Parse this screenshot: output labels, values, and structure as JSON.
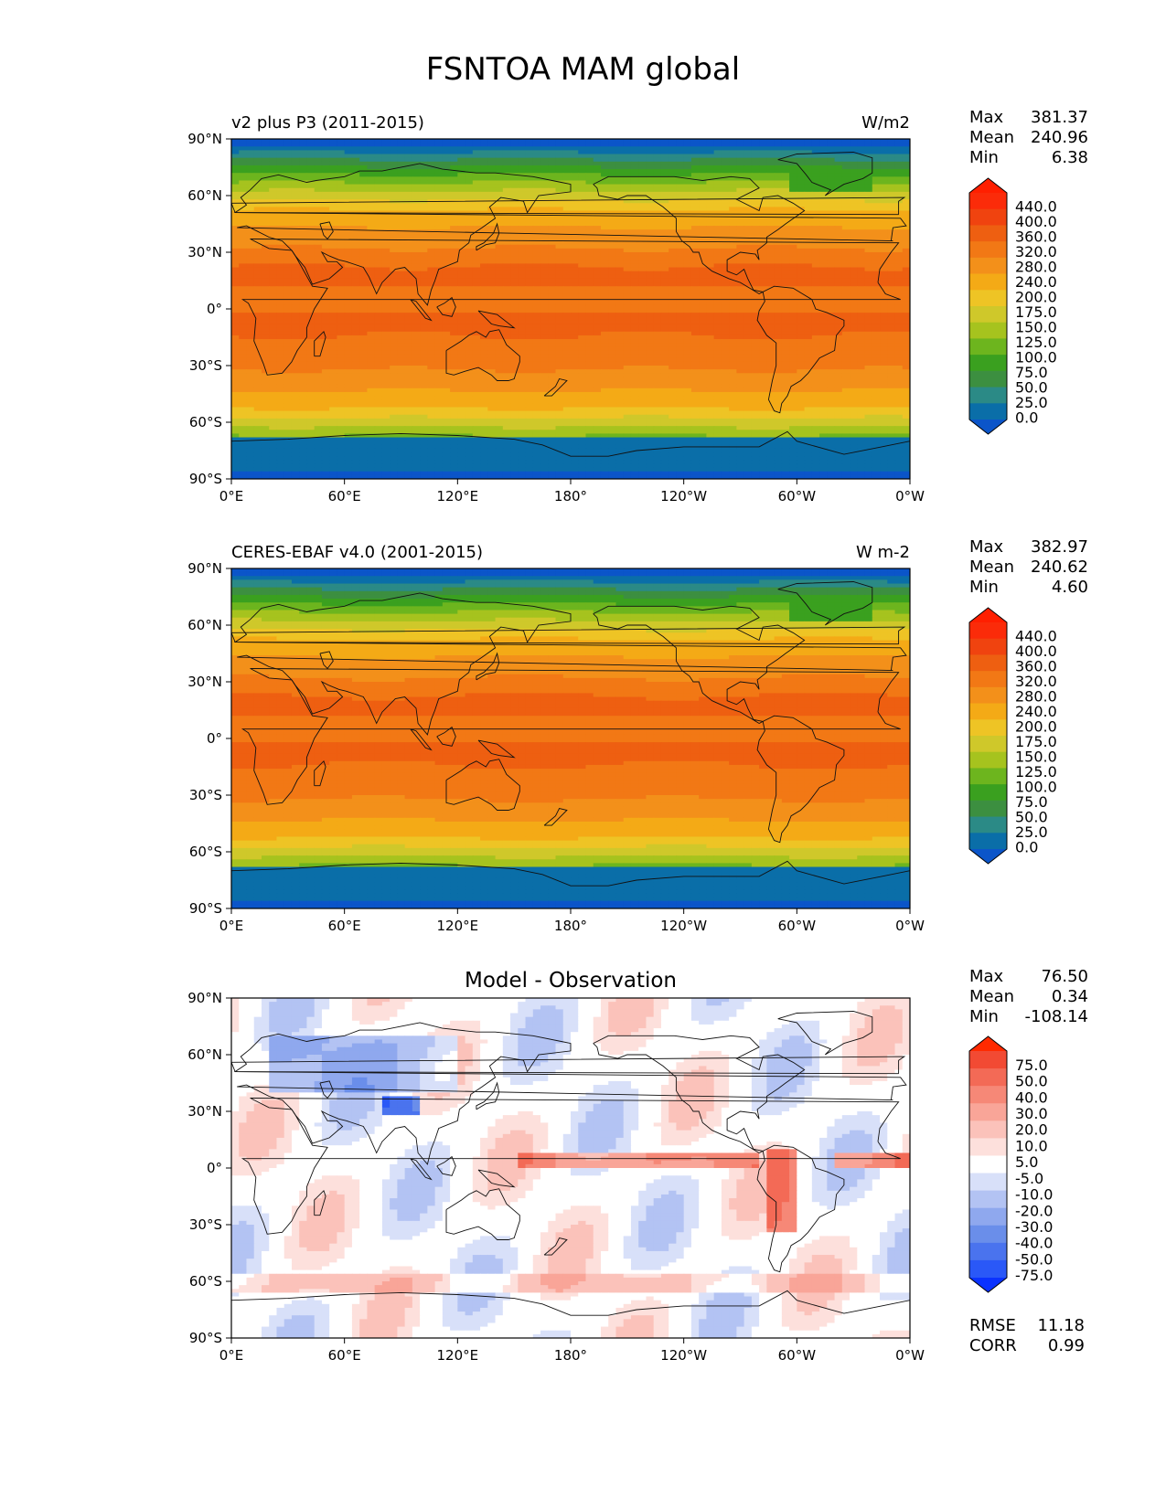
{
  "title": "FSNTOA MAM global",
  "chart_data": [
    {
      "type": "heatmap",
      "panel": "test",
      "left_title": "v2 plus P3 (2011-2015)",
      "center_title": "",
      "units": "W/m2",
      "yticks": [
        "90°N",
        "60°N",
        "30°N",
        "0°",
        "30°S",
        "60°S",
        "90°S"
      ],
      "xticks": [
        "0°E",
        "60°E",
        "120°E",
        "180°",
        "120°W",
        "60°W",
        "0°W"
      ],
      "xlim": [
        0,
        360
      ],
      "ylim": [
        -90,
        90
      ],
      "stats": {
        "max_label": "Max",
        "max": "381.37",
        "mean_label": "Mean",
        "mean": "240.96",
        "min_label": "Min",
        "min": "6.38"
      },
      "colorbar_levels": [
        "0.0",
        "25.0",
        "50.0",
        "75.0",
        "100.0",
        "125.0",
        "150.0",
        "175.0",
        "200.0",
        "240.0",
        "280.0",
        "320.0",
        "360.0",
        "400.0",
        "440.0"
      ],
      "colorbar_colors": [
        "#0b55c9",
        "#0a6ea8",
        "#2b8a86",
        "#3c8f40",
        "#3aa01f",
        "#6db51e",
        "#a6c31e",
        "#cfc82a",
        "#eec425",
        "#f4aa16",
        "#f3901a",
        "#f27815",
        "#ee5f11",
        "#f0430f",
        "#fb2b09",
        "#ff1f00"
      ]
    },
    {
      "type": "heatmap",
      "panel": "reference",
      "left_title": "CERES-EBAF v4.0 (2001-2015)",
      "center_title": "",
      "units": "W m-2",
      "yticks": [
        "90°N",
        "60°N",
        "30°N",
        "0°",
        "30°S",
        "60°S",
        "90°S"
      ],
      "xticks": [
        "0°E",
        "60°E",
        "120°E",
        "180°",
        "120°W",
        "60°W",
        "0°W"
      ],
      "xlim": [
        0,
        360
      ],
      "ylim": [
        -90,
        90
      ],
      "stats": {
        "max_label": "Max",
        "max": "382.97",
        "mean_label": "Mean",
        "mean": "240.62",
        "min_label": "Min",
        "min": "4.60"
      },
      "colorbar_levels": [
        "0.0",
        "25.0",
        "50.0",
        "75.0",
        "100.0",
        "125.0",
        "150.0",
        "175.0",
        "200.0",
        "240.0",
        "280.0",
        "320.0",
        "360.0",
        "400.0",
        "440.0"
      ],
      "colorbar_colors": [
        "#0b55c9",
        "#0a6ea8",
        "#2b8a86",
        "#3c8f40",
        "#3aa01f",
        "#6db51e",
        "#a6c31e",
        "#cfc82a",
        "#eec425",
        "#f4aa16",
        "#f3901a",
        "#f27815",
        "#ee5f11",
        "#f0430f",
        "#fb2b09",
        "#ff1f00"
      ]
    },
    {
      "type": "heatmap",
      "panel": "difference",
      "left_title": "",
      "center_title": "Model - Observation",
      "units": "",
      "yticks": [
        "90°N",
        "60°N",
        "30°N",
        "0°",
        "30°S",
        "60°S",
        "90°S"
      ],
      "xticks": [
        "0°E",
        "60°E",
        "120°E",
        "180°",
        "120°W",
        "60°W",
        "0°W"
      ],
      "xlim": [
        0,
        360
      ],
      "ylim": [
        -90,
        90
      ],
      "stats": {
        "max_label": "Max",
        "max": "76.50",
        "mean_label": "Mean",
        "mean": "0.34",
        "min_label": "Min",
        "min": "-108.14"
      },
      "colorbar_levels": [
        "-75.0",
        "-50.0",
        "-40.0",
        "-30.0",
        "-20.0",
        "-10.0",
        "-5.0",
        "5.0",
        "10.0",
        "20.0",
        "30.0",
        "40.0",
        "50.0",
        "75.0"
      ],
      "colorbar_colors": [
        "#0a32ff",
        "#2a58f7",
        "#4a73ee",
        "#6a8eea",
        "#8fa8ee",
        "#b3c3f3",
        "#d8e0f9",
        "#ffffff",
        "#fde0dc",
        "#fbc2ba",
        "#f9a598",
        "#f68877",
        "#f36a56",
        "#f24a33",
        "#ff2a00"
      ],
      "metrics": {
        "rmse_label": "RMSE",
        "rmse": "11.18",
        "corr_label": "CORR",
        "corr": "0.99"
      }
    }
  ]
}
